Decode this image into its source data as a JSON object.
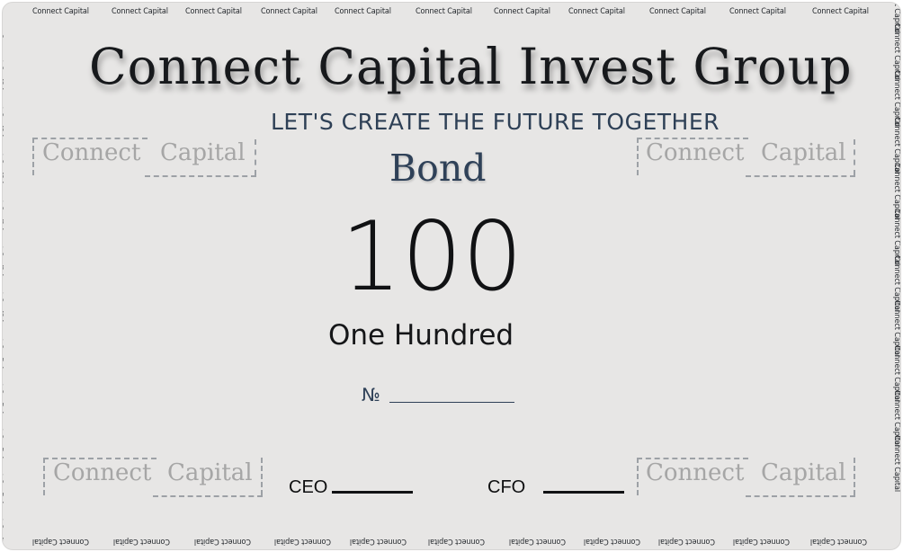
{
  "document": {
    "title": "Connect Capital Invest Group",
    "tagline": "LET'S CREATE THE FUTURE TOGETHER",
    "bond_label": "Bond",
    "amount_numeric": "100",
    "amount_words": "One Hundred",
    "serial_label": "№"
  },
  "watermarks": {
    "repeat_text": "Connect Capital",
    "box_word_1": "Connect",
    "box_word_2": "Capital"
  },
  "signatures": {
    "ceo_label": "CEO",
    "cfo_label": "CFO"
  }
}
